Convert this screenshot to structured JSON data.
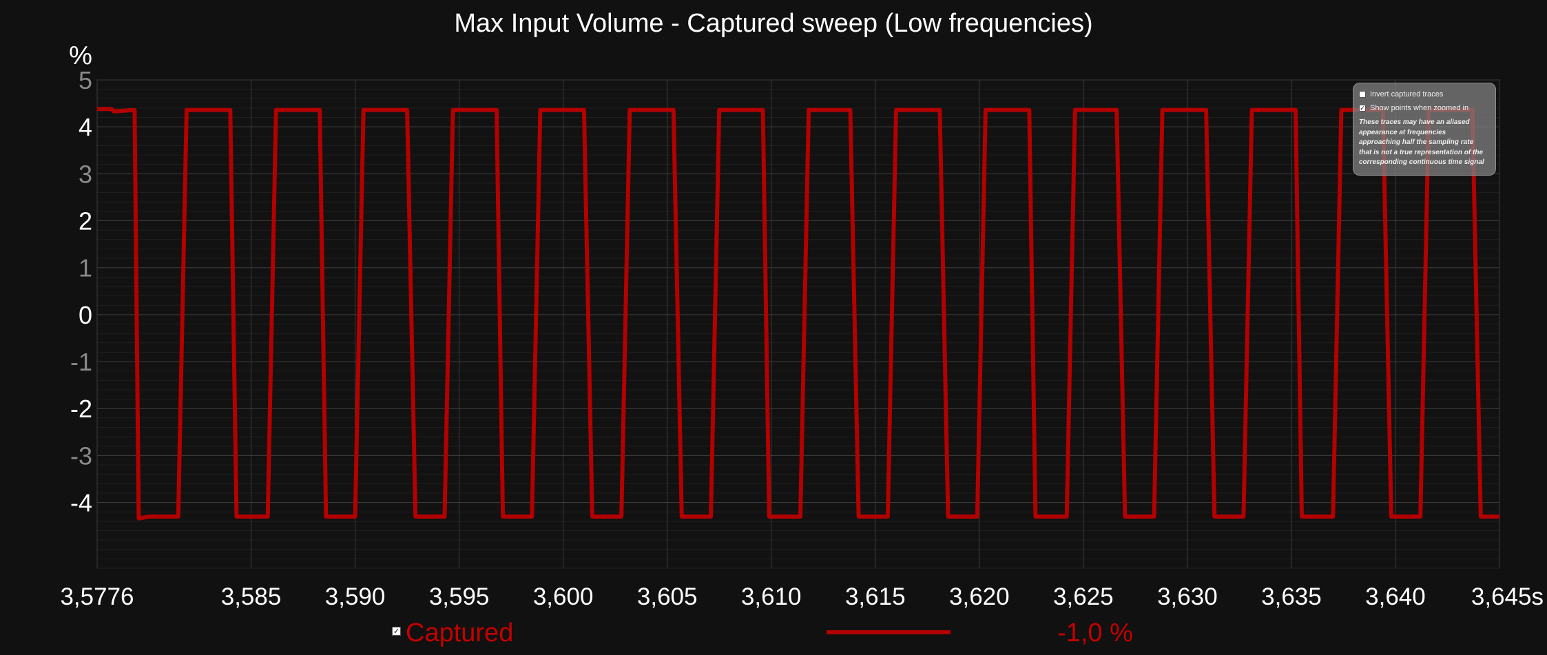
{
  "chart_data": {
    "type": "line",
    "title": "Max Input Volume - Captured sweep (Low frequencies)",
    "ylabel": "%",
    "xlabel": "",
    "x_unit_suffix": "s",
    "xlim": [
      3.5776,
      3.645
    ],
    "ylim": [
      -5.4,
      5
    ],
    "x_tick_labels": [
      "3,5776",
      "3,585",
      "3,590",
      "3,595",
      "3,600",
      "3,605",
      "3,610",
      "3,615",
      "3,620",
      "3,625",
      "3,630",
      "3,635",
      "3,640",
      "3,645s"
    ],
    "x_tick_values": [
      3.5776,
      3.585,
      3.59,
      3.595,
      3.6,
      3.605,
      3.61,
      3.615,
      3.62,
      3.625,
      3.63,
      3.635,
      3.64,
      3.645
    ],
    "y_tick_labels": [
      "5",
      "4",
      "3",
      "2",
      "1",
      "0",
      "-1",
      "-2",
      "-3",
      "-4"
    ],
    "y_tick_values": [
      5,
      4,
      3,
      2,
      1,
      0,
      -1,
      -2,
      -3,
      -4
    ],
    "y_major_ticks": [
      4,
      2,
      0,
      -2,
      -4
    ],
    "grid": true,
    "series": [
      {
        "name": "Captured",
        "color": "#b30000",
        "x": [
          3.5776,
          3.5783,
          3.5784,
          3.5794,
          3.5796,
          3.5801,
          3.5815,
          3.5819,
          3.5826,
          3.584,
          3.5843,
          3.5858,
          3.5862,
          3.5868,
          3.5883,
          3.5886,
          3.59,
          3.5904,
          3.5911,
          3.5925,
          3.5929,
          3.5943,
          3.5947,
          3.5953,
          3.5968,
          3.5971,
          3.5985,
          3.5989,
          3.5996,
          3.601,
          3.6014,
          3.6028,
          3.6032,
          3.6039,
          3.6053,
          3.6057,
          3.6071,
          3.6075,
          3.6081,
          3.6096,
          3.6099,
          3.6114,
          3.6118,
          3.6124,
          3.6138,
          3.6142,
          3.6156,
          3.616,
          3.6167,
          3.6181,
          3.6185,
          3.6199,
          3.6203,
          3.6209,
          3.6224,
          3.6227,
          3.6242,
          3.6246,
          3.6252,
          3.6266,
          3.627,
          3.6284,
          3.6288,
          3.6295,
          3.6309,
          3.6313,
          3.6327,
          3.6331,
          3.6337,
          3.6352,
          3.6355,
          3.637,
          3.6374,
          3.638,
          3.6394,
          3.6398,
          3.6412,
          3.6416,
          3.6423,
          3.6437,
          3.6441,
          3.6445,
          3.645
        ],
        "y": [
          4.38,
          4.38,
          4.33,
          4.36,
          -4.34,
          -4.3,
          -4.3,
          4.36,
          4.36,
          4.36,
          -4.3,
          -4.3,
          4.36,
          4.36,
          4.36,
          -4.3,
          -4.3,
          4.36,
          4.36,
          4.36,
          -4.3,
          -4.3,
          4.36,
          4.36,
          4.36,
          -4.3,
          -4.3,
          4.36,
          4.36,
          4.36,
          -4.3,
          -4.3,
          4.36,
          4.36,
          4.36,
          -4.3,
          -4.3,
          4.36,
          4.36,
          4.36,
          -4.3,
          -4.3,
          4.36,
          4.36,
          4.36,
          -4.3,
          -4.3,
          4.36,
          4.36,
          4.36,
          -4.3,
          -4.3,
          4.36,
          4.36,
          4.36,
          -4.3,
          -4.3,
          4.36,
          4.36,
          4.36,
          -4.3,
          -4.3,
          4.36,
          4.36,
          4.36,
          -4.3,
          -4.3,
          4.36,
          4.36,
          4.36,
          -4.3,
          -4.3,
          4.36,
          4.36,
          4.36,
          -4.3,
          -4.3,
          4.36,
          4.36,
          4.36,
          -4.3,
          -4.3,
          -4.3
        ]
      }
    ]
  },
  "legend": {
    "series_label": "Captured",
    "value_readout": "-1,0 %",
    "checked": true
  },
  "overlay": {
    "invert_label": "Invert captured traces",
    "invert_checked": false,
    "show_points_label": "Show points when zoomed in",
    "show_points_checked": true,
    "note_lines": [
      "These traces may have an aliased",
      "appearance at frequencies",
      "approaching half the sampling rate",
      "that is not a true representation of the",
      "corresponding continuous time signal"
    ]
  },
  "colors": {
    "background": "#111111",
    "trace": "#b30000",
    "legend_text": "#c40000"
  }
}
